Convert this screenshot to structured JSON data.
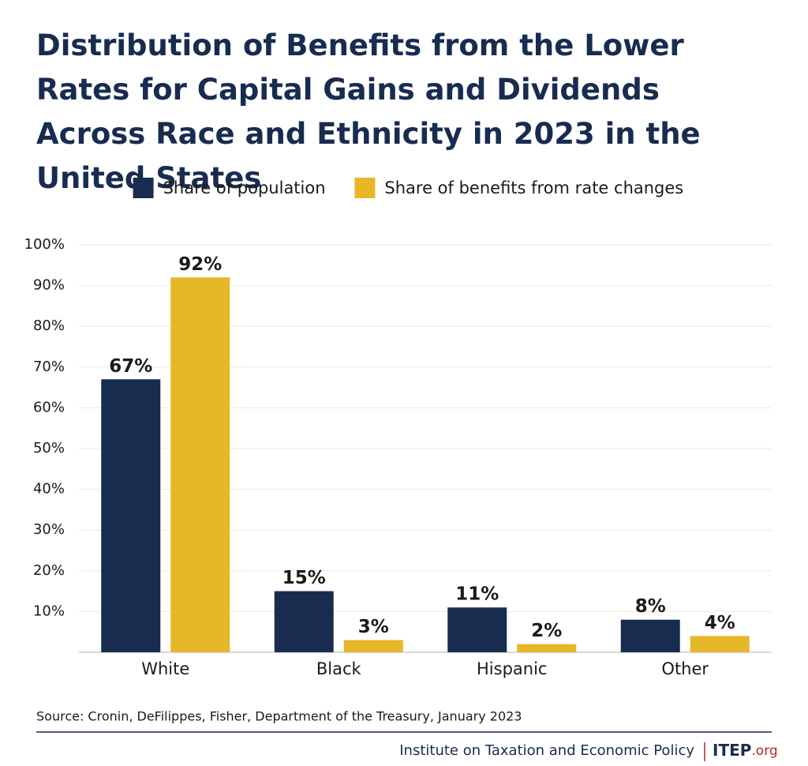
{
  "chart_data": {
    "type": "bar",
    "title": "Distribution of Benefits from the Lower Rates for Capital Gains and Dividends Across Race and Ethnicity in 2023 in the United States",
    "categories": [
      "White",
      "Black",
      "Hispanic",
      "Other"
    ],
    "series": [
      {
        "name": "Share of population",
        "color": "#182c50",
        "values": [
          67,
          15,
          11,
          8
        ],
        "value_labels": [
          "67%",
          "15%",
          "11%",
          "8%"
        ]
      },
      {
        "name": "Share of benefits from rate changes",
        "color": "#e6b829",
        "values": [
          92,
          3,
          2,
          4
        ],
        "value_labels": [
          "92%",
          "3%",
          "2%",
          "4%"
        ]
      }
    ],
    "ylim": [
      0,
      100
    ],
    "yticks": [
      {
        "value": 10,
        "label": "10%"
      },
      {
        "value": 20,
        "label": "20%"
      },
      {
        "value": 30,
        "label": "30%"
      },
      {
        "value": 40,
        "label": "40%"
      },
      {
        "value": 50,
        "label": "50%"
      },
      {
        "value": 60,
        "label": "60%"
      },
      {
        "value": 70,
        "label": "70%"
      },
      {
        "value": 80,
        "label": "80%"
      },
      {
        "value": 90,
        "label": "90%"
      },
      {
        "value": 100,
        "label": "100%"
      }
    ],
    "grid": true,
    "legend": "top",
    "source": "Source: Cronin, DeFilippes, Fisher, Department of the Treasury, January 2023",
    "footer": {
      "org": "Institute on Taxation and Economic Policy",
      "logo": "ITEP",
      "logo_suffix": ".org"
    }
  }
}
